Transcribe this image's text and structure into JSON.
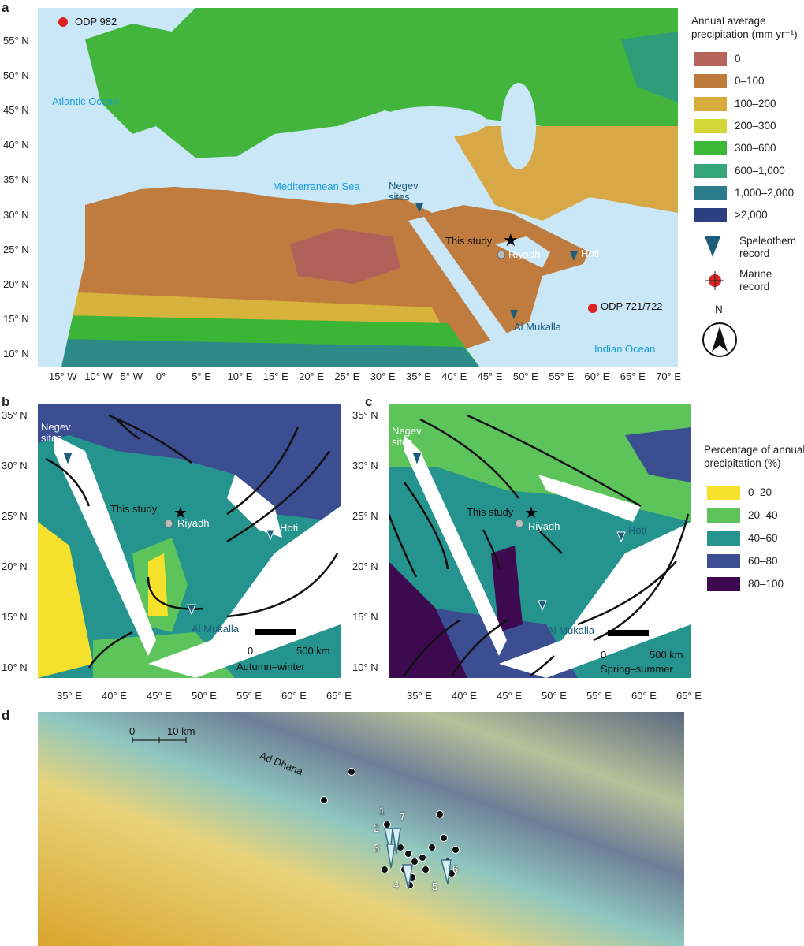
{
  "panel_a": {
    "label": "a",
    "lat_ticks": [
      "55° N",
      "50° N",
      "45° N",
      "40° N",
      "35° N",
      "30° N",
      "25° N",
      "20° N",
      "15° N",
      "10° N"
    ],
    "lon_ticks": [
      "15° W",
      "10° W",
      "5° W",
      "0°",
      "5° E",
      "10° E",
      "15° E",
      "20° E",
      "25° E",
      "30° E",
      "35° E",
      "40° E",
      "45° E",
      "50° E",
      "55° E",
      "60° E",
      "65° E",
      "70° E"
    ],
    "labels": {
      "atlantic": "Atlantic Ocean",
      "med": "Mediterranean Sea",
      "indian": "Indian Ocean",
      "negev": "Negev sites",
      "this_study": "This study",
      "riyadh": "Riyadh",
      "hoti": "Hoti",
      "mukalla": "Al Mukalla",
      "odp982": "ODP 982",
      "odp721": "ODP 721/722"
    },
    "legend": {
      "title": "Annual average precipitation (mm yr⁻¹)",
      "items": [
        {
          "label": "0",
          "color": "#b5645a"
        },
        {
          "label": "0–100",
          "color": "#bf7b3c"
        },
        {
          "label": "100–200",
          "color": "#d9aa3c"
        },
        {
          "label": "200–300",
          "color": "#d3d73a"
        },
        {
          "label": "300–600",
          "color": "#3bb836"
        },
        {
          "label": "600–1,000",
          "color": "#35a57a"
        },
        {
          "label": "1,000–2,000",
          "color": "#2c7d8c"
        },
        {
          "label": ">2,000",
          "color": "#2c3f80"
        }
      ],
      "speleothem": "Speleothem record",
      "marine": "Marine record",
      "north": "N"
    }
  },
  "panel_b": {
    "label": "b",
    "lat_ticks": [
      "35° N",
      "30° N",
      "25° N",
      "20° N",
      "15° N",
      "10° N"
    ],
    "lon_ticks": [
      "35° E",
      "40° E",
      "45° E",
      "50° E",
      "55° E",
      "60° E",
      "65° E"
    ],
    "labels": {
      "negev": "Negev sites",
      "this_study": "This study",
      "riyadh": "Riyadh",
      "hoti": "Hoti",
      "mukalla": "Al Mukalla",
      "scale0": "0",
      "scale": "500 km",
      "season": "Autumn–winter"
    }
  },
  "panel_c": {
    "label": "c",
    "lat_ticks": [
      "35° N",
      "30° N",
      "25° N",
      "20° N",
      "15° N",
      "10° N"
    ],
    "lon_ticks": [
      "35° E",
      "40° E",
      "45° E",
      "50° E",
      "55° E",
      "60° E",
      "65° E"
    ],
    "labels": {
      "negev": "Negev sites",
      "this_study": "This study",
      "riyadh": "Riyadh",
      "hoti": "Hoti",
      "mukalla": "Al Mukalla",
      "scale0": "0",
      "scale": "500 km",
      "season": "Spring–summer"
    },
    "legend": {
      "title": "Percentage of annual precipitation (%)",
      "items": [
        {
          "label": "0–20",
          "color": "#f5e12c"
        },
        {
          "label": "20–40",
          "color": "#5cc45a"
        },
        {
          "label": "40–60",
          "color": "#25938e"
        },
        {
          "label": "60–80",
          "color": "#3c4e92"
        },
        {
          "label": "80–100",
          "color": "#3e0a4f"
        }
      ]
    }
  },
  "panel_d": {
    "label": "d",
    "scale0": "0",
    "scale": "10 km",
    "place": "Ad Dhana",
    "site_numbers": [
      "1",
      "2",
      "3",
      "4",
      "5",
      "6",
      "7"
    ]
  }
}
